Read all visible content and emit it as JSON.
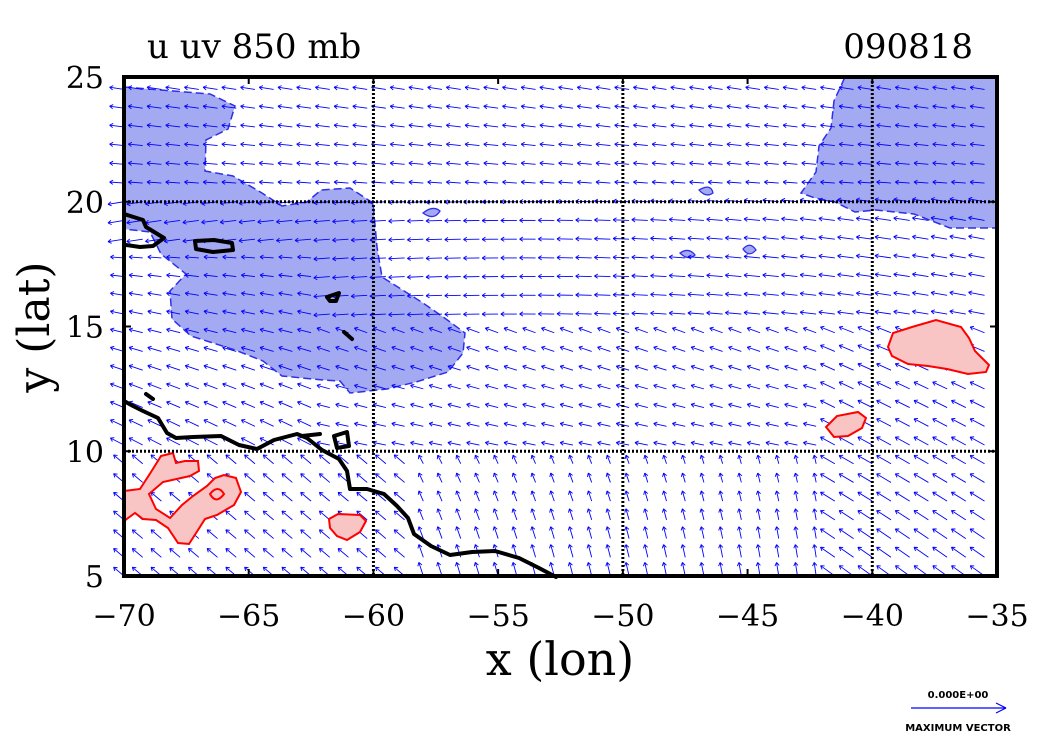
{
  "figure": {
    "title_left": "u uv 850 mb",
    "title_right": "090818",
    "x_axis_label": "x (lon)",
    "y_axis_label": "y (lat)",
    "x_ticks": [
      "−70",
      "−65",
      "−60",
      "−55",
      "−50",
      "−45",
      "−40",
      "−35"
    ],
    "y_ticks": [
      "5",
      "10",
      "15",
      "20",
      "25"
    ],
    "legend": {
      "vector_value": "0.000E+00",
      "vector_label": "MAXIMUM VECTOR"
    }
  },
  "map": {
    "lon_range": [
      -70,
      -35
    ],
    "lat_range": [
      5,
      25
    ],
    "grid_lines": {
      "lon": [
        -60,
        -50,
        -40
      ],
      "lat": [
        10,
        20
      ]
    },
    "vector_field": {
      "lon_spacing": 0.75,
      "lat_spacing": 0.75,
      "color": "#0000ff"
    },
    "negative_u_shading_color": "#9ba3f0",
    "positive_u_shading_color": "#f8c4c4",
    "positive_u_contour_color": "#ff0000",
    "coastline_color": "#000000"
  }
}
